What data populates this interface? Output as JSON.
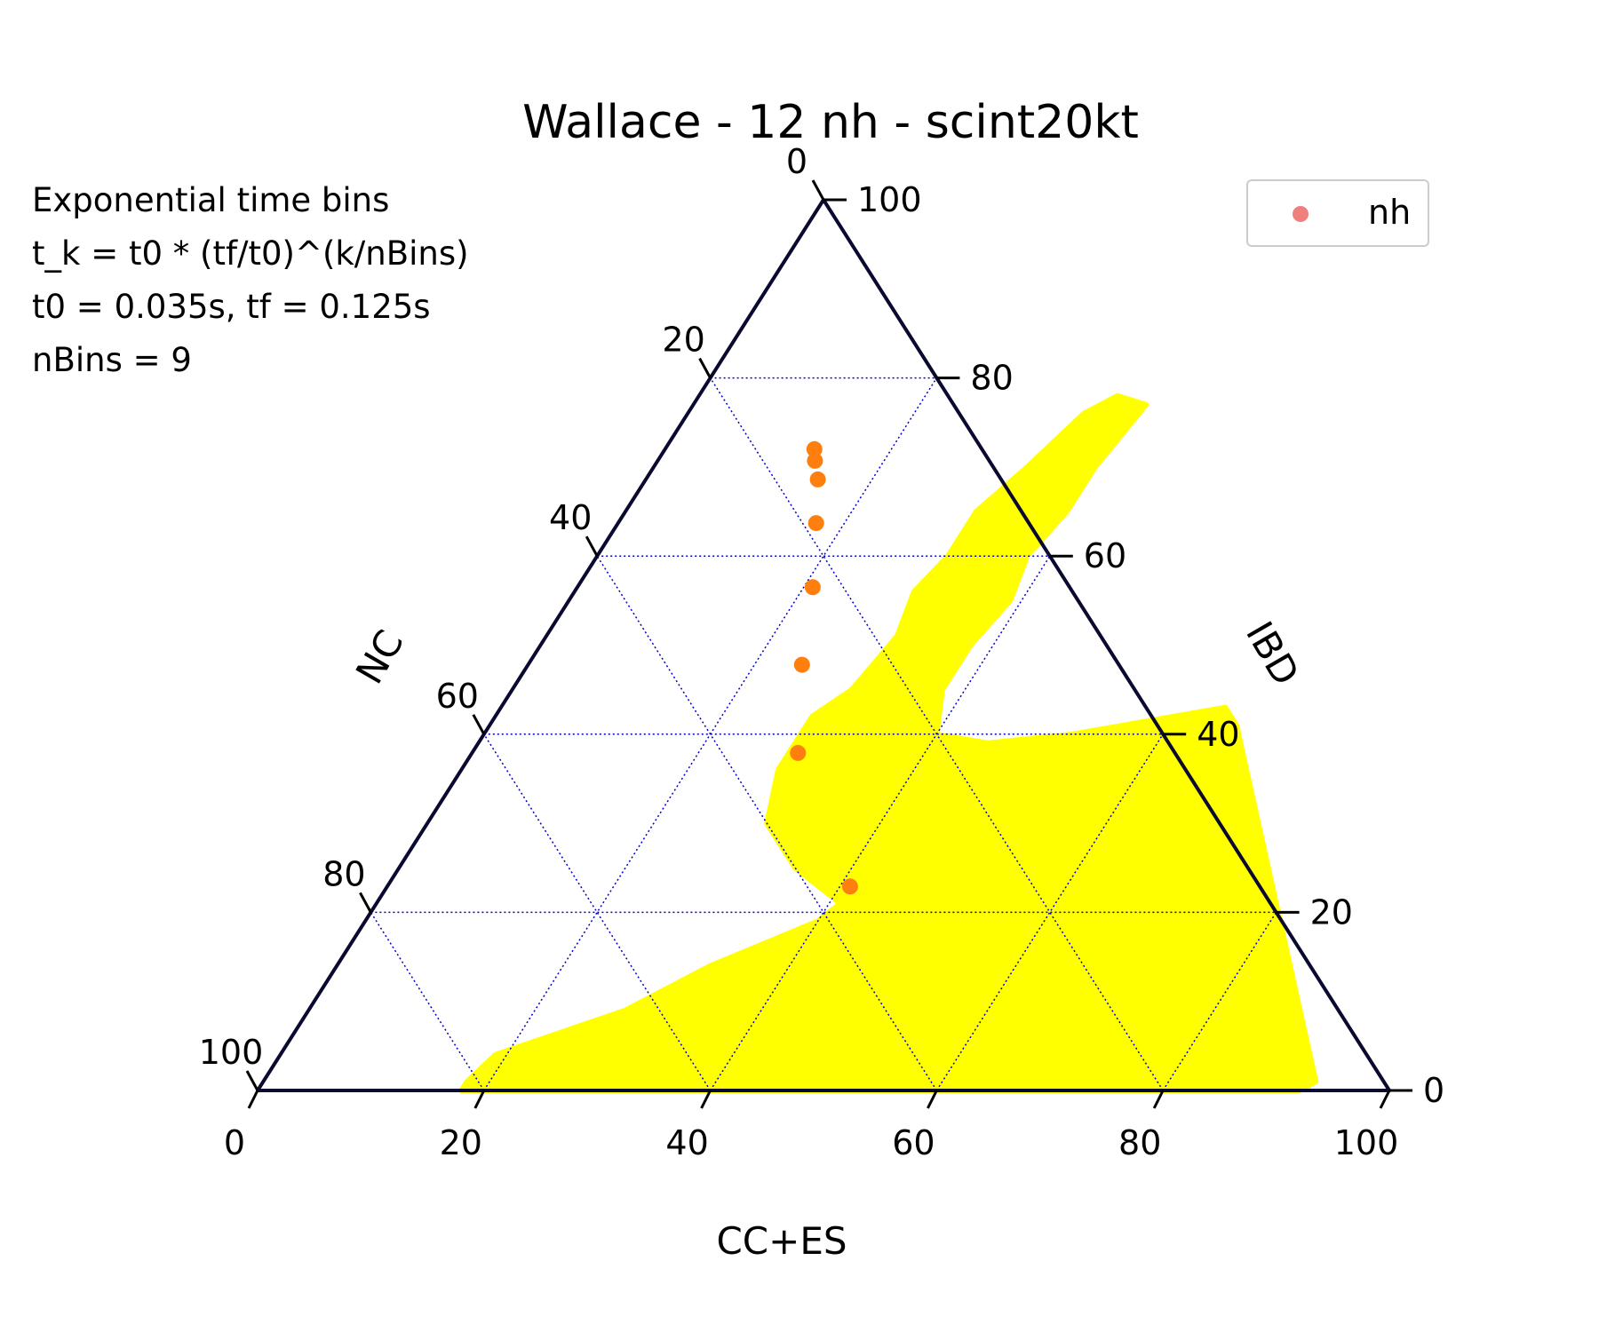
{
  "chart_data": {
    "type": "scatter",
    "plot_kind": "ternary",
    "title": "Wallace - 12 nh - scint20kt",
    "annotation": [
      "Exponential time bins",
      "t_k = t0 * (tf/t0)^(k/nBins)",
      "t0 = 0.035s, tf = 0.125s",
      "nBins = 9"
    ],
    "axes": {
      "bottom": {
        "label": "CC+ES",
        "ticks": [
          "0",
          "20",
          "40",
          "60",
          "80",
          "100"
        ],
        "range": [
          0,
          100
        ]
      },
      "right": {
        "label": "IBD",
        "ticks": [
          "0",
          "20",
          "40",
          "60",
          "80",
          "100"
        ],
        "range": [
          0,
          100
        ]
      },
      "left": {
        "label": "NC",
        "ticks": [
          "0",
          "20",
          "40",
          "60",
          "80",
          "100"
        ],
        "range": [
          0,
          100
        ]
      }
    },
    "grid": true,
    "legend": {
      "position": "top-right",
      "entries": [
        "nh"
      ]
    },
    "colors": {
      "region": "#ffff00",
      "points": "#ff7f0e",
      "legend_marker": "#f08080",
      "grid": "#0000cc",
      "frame": "#0a0a30"
    },
    "region": {
      "description": "yellow hex-binned allowed region",
      "outline": [
        {
          "cc_es": 18,
          "ibd": 1
        },
        {
          "cc_es": 19,
          "ibd": 4
        },
        {
          "cc_es": 28,
          "ibd": 9
        },
        {
          "cc_es": 33,
          "ibd": 14
        },
        {
          "cc_es": 40,
          "ibd": 19
        },
        {
          "cc_es": 41,
          "ibd": 21
        },
        {
          "cc_es": 35,
          "ibd": 25
        },
        {
          "cc_es": 30,
          "ibd": 30
        },
        {
          "cc_es": 28,
          "ibd": 36
        },
        {
          "cc_es": 28,
          "ibd": 42
        },
        {
          "cc_es": 30,
          "ibd": 45
        },
        {
          "cc_es": 31,
          "ibd": 51
        },
        {
          "cc_es": 30,
          "ibd": 56
        },
        {
          "cc_es": 31,
          "ibd": 60
        },
        {
          "cc_es": 31,
          "ibd": 65
        },
        {
          "cc_es": 33,
          "ibd": 70
        },
        {
          "cc_es": 35,
          "ibd": 76
        },
        {
          "cc_es": 37,
          "ibd": 78
        },
        {
          "cc_es": 40,
          "ibd": 77
        },
        {
          "cc_es": 39,
          "ibd": 70
        },
        {
          "cc_es": 39,
          "ibd": 65
        },
        {
          "cc_es": 38,
          "ibd": 60
        },
        {
          "cc_es": 39,
          "ibd": 55
        },
        {
          "cc_es": 38,
          "ibd": 50
        },
        {
          "cc_es": 38,
          "ibd": 45
        },
        {
          "cc_es": 40,
          "ibd": 40
        },
        {
          "cc_es": 45,
          "ibd": 39
        },
        {
          "cc_es": 52,
          "ibd": 40
        },
        {
          "cc_es": 60,
          "ibd": 42
        },
        {
          "cc_es": 64,
          "ibd": 43
        },
        {
          "cc_es": 66,
          "ibd": 41
        },
        {
          "cc_es": 93,
          "ibd": 1
        },
        {
          "cc_es": 92,
          "ibd": 0
        },
        {
          "cc_es": 18,
          "ibd": 0
        }
      ]
    },
    "series": [
      {
        "name": "nh",
        "points": [
          {
            "cc_es": 13.2,
            "ibd": 72.0,
            "nc": 14.8
          },
          {
            "cc_es": 13.9,
            "ibd": 70.7,
            "nc": 15.4
          },
          {
            "cc_es": 15.2,
            "ibd": 68.6,
            "nc": 16.2
          },
          {
            "cc_es": 17.5,
            "ibd": 63.7,
            "nc": 18.8
          },
          {
            "cc_es": 20.8,
            "ibd": 56.5,
            "nc": 22.7
          },
          {
            "cc_es": 24.2,
            "ibd": 47.8,
            "nc": 28.0
          },
          {
            "cc_es": 28.8,
            "ibd": 37.9,
            "nc": 33.3
          },
          {
            "cc_es": 40.9,
            "ibd": 22.9,
            "nc": 36.2
          }
        ]
      }
    ]
  }
}
